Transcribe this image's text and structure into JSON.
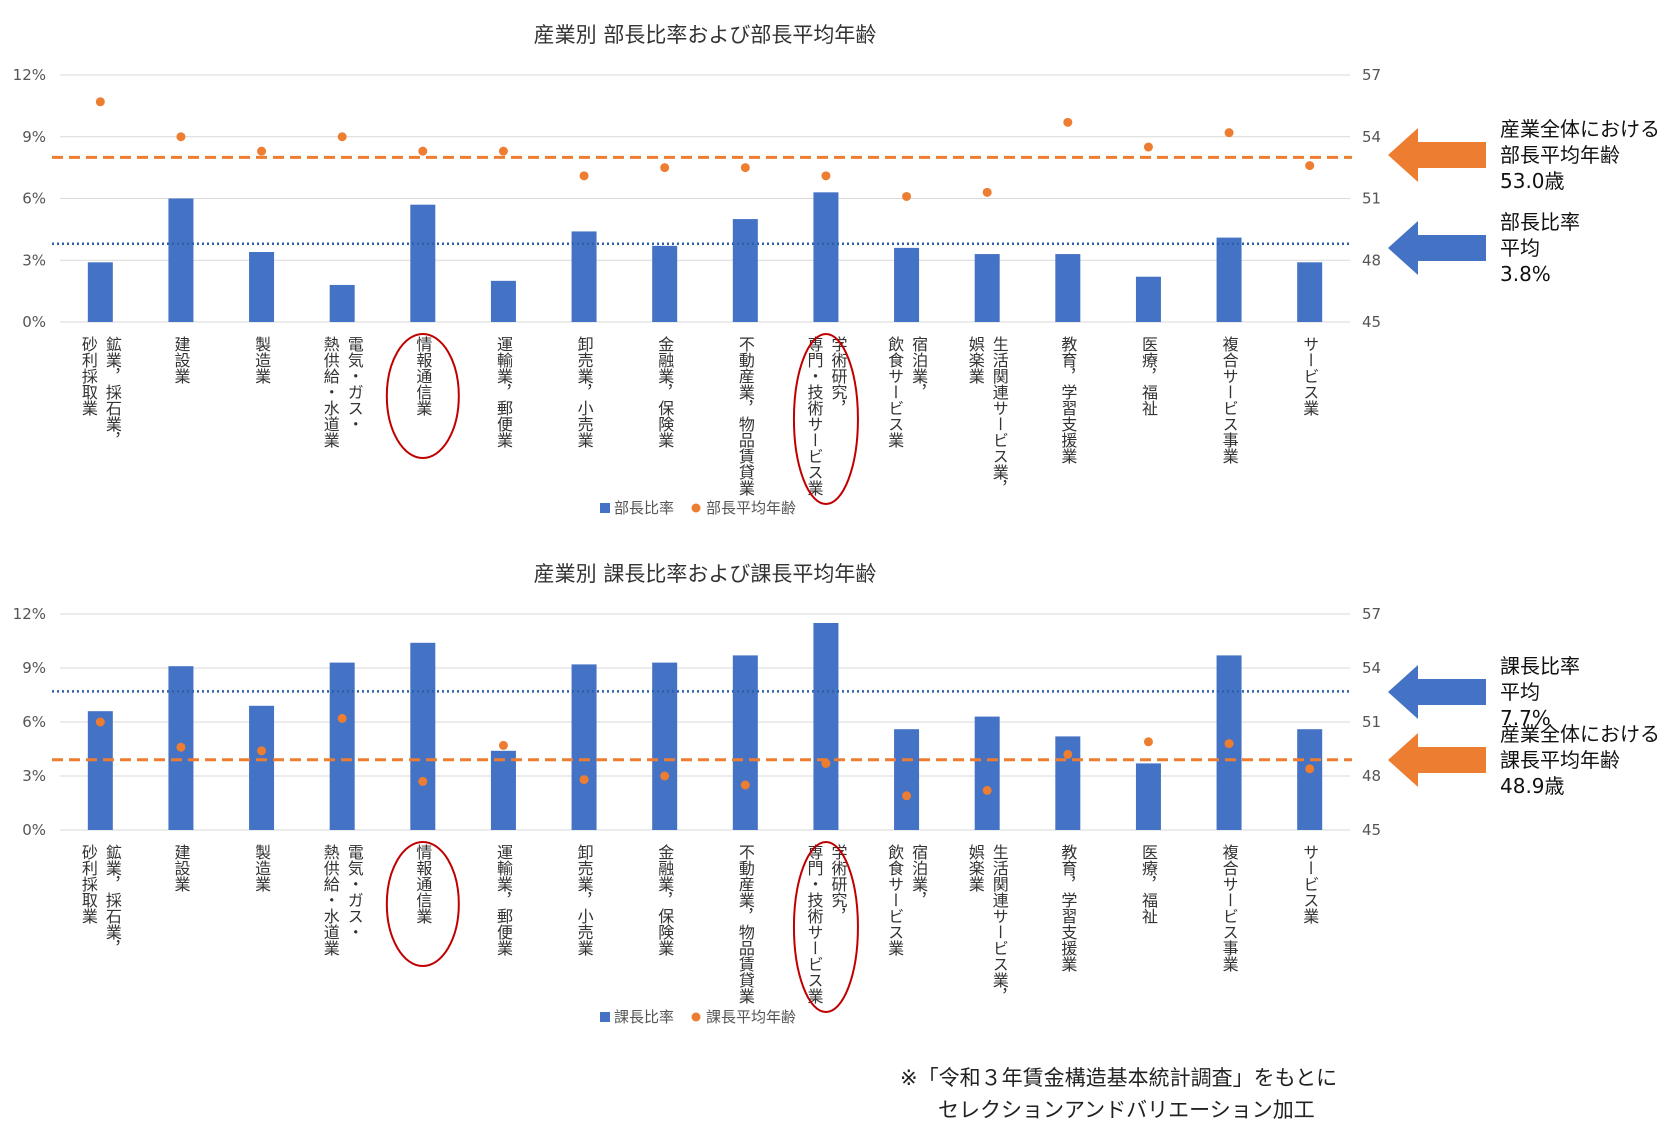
{
  "charts": [
    {
      "id": "bucho",
      "chart_data": {
        "type": "bar",
        "title": "産業別 部長比率および部長平均年齢",
        "categories": [
          [
            "鉱業，採石業，",
            "砂利採取業"
          ],
          [
            "建設業"
          ],
          [
            "製造業"
          ],
          [
            "電気・ガス・",
            "熱供給・水道業"
          ],
          [
            "情報通信業"
          ],
          [
            "運輸業，郵便業"
          ],
          [
            "卸売業，小売業"
          ],
          [
            "金融業，保険業"
          ],
          [
            "不動産業，物品賃貸業"
          ],
          [
            "学術研究，",
            "専門・技術サービス業"
          ],
          [
            "宿泊業，",
            "飲食サービス業"
          ],
          [
            "生活関連サービス業，",
            "娯楽業"
          ],
          [
            "教育，学習支援業"
          ],
          [
            "医療，福祉"
          ],
          [
            "複合サービス事業"
          ],
          [
            "サービス業"
          ]
        ],
        "series": [
          {
            "name": "部長比率",
            "axis": "left",
            "kind": "bar",
            "color": "#4472c4",
            "values": [
              2.9,
              6.0,
              3.4,
              1.8,
              5.7,
              2.0,
              4.4,
              3.7,
              5.0,
              6.3,
              3.6,
              3.3,
              3.3,
              2.2,
              4.1,
              2.9
            ]
          },
          {
            "name": "部長平均年齢",
            "axis": "right",
            "kind": "scatter",
            "color": "#ed7d31",
            "values": [
              55.7,
              54.0,
              53.3,
              54.0,
              53.3,
              53.3,
              52.1,
              52.5,
              52.5,
              52.1,
              51.1,
              51.3,
              54.7,
              53.5,
              54.2,
              52.6
            ]
          }
        ],
        "yleft": {
          "min": 0,
          "max": 12,
          "ticks": [
            "0%",
            "3%",
            "6%",
            "9%",
            "12%"
          ]
        },
        "yright": {
          "min": 45,
          "max": 57,
          "ticks": [
            "45",
            "48",
            "51",
            "54",
            "57"
          ]
        },
        "ref_lines": [
          {
            "axis": "left",
            "value": 3.8,
            "style": "dotted",
            "color": "#2e5fa8"
          },
          {
            "axis": "right",
            "value": 53.0,
            "style": "dashed",
            "color": "#ed7d31"
          }
        ],
        "highlighted_categories": [
          4,
          9
        ],
        "legend": "bottom-center",
        "grid": true
      },
      "callouts": [
        {
          "color": "#ed7d31",
          "lines": [
            "産業全体における",
            "部長平均年齢",
            "53.0歳"
          ]
        },
        {
          "color": "#4472c4",
          "lines": [
            "部長比率",
            "平均",
            "3.8%"
          ]
        }
      ]
    },
    {
      "id": "kacho",
      "chart_data": {
        "type": "bar",
        "title": "産業別 課長比率および課長平均年齢",
        "categories": [
          [
            "鉱業，採石業，",
            "砂利採取業"
          ],
          [
            "建設業"
          ],
          [
            "製造業"
          ],
          [
            "電気・ガス・",
            "熱供給・水道業"
          ],
          [
            "情報通信業"
          ],
          [
            "運輸業，郵便業"
          ],
          [
            "卸売業，小売業"
          ],
          [
            "金融業，保険業"
          ],
          [
            "不動産業，物品賃貸業"
          ],
          [
            "学術研究，",
            "専門・技術サービス業"
          ],
          [
            "宿泊業，",
            "飲食サービス業"
          ],
          [
            "生活関連サービス業，",
            "娯楽業"
          ],
          [
            "教育，学習支援業"
          ],
          [
            "医療，福祉"
          ],
          [
            "複合サービス事業"
          ],
          [
            "サービス業"
          ]
        ],
        "series": [
          {
            "name": "課長比率",
            "axis": "left",
            "kind": "bar",
            "color": "#4472c4",
            "values": [
              6.6,
              9.1,
              6.9,
              9.3,
              10.4,
              4.4,
              9.2,
              9.3,
              9.7,
              11.5,
              5.6,
              6.3,
              5.2,
              3.7,
              9.7,
              5.6
            ]
          },
          {
            "name": "課長平均年齢",
            "axis": "right",
            "kind": "scatter",
            "color": "#ed7d31",
            "values": [
              51.0,
              49.6,
              49.4,
              51.2,
              47.7,
              49.7,
              47.8,
              48.0,
              47.5,
              48.7,
              46.9,
              47.2,
              49.2,
              49.9,
              49.8,
              48.4
            ]
          }
        ],
        "yleft": {
          "min": 0,
          "max": 12,
          "ticks": [
            "0%",
            "3%",
            "6%",
            "9%",
            "12%"
          ]
        },
        "yright": {
          "min": 45,
          "max": 57,
          "ticks": [
            "45",
            "48",
            "51",
            "54",
            "57"
          ]
        },
        "ref_lines": [
          {
            "axis": "left",
            "value": 7.7,
            "style": "dotted",
            "color": "#2e5fa8"
          },
          {
            "axis": "right",
            "value": 48.9,
            "style": "dashed",
            "color": "#ed7d31"
          }
        ],
        "highlighted_categories": [
          4,
          9
        ],
        "legend": "bottom-center",
        "grid": true
      },
      "callouts": [
        {
          "color": "#4472c4",
          "lines": [
            "課長比率",
            "平均",
            "7.7%"
          ]
        },
        {
          "color": "#ed7d31",
          "lines": [
            "産業全体における",
            "課長平均年齢",
            "48.9歳"
          ]
        }
      ]
    }
  ],
  "footnote": {
    "line1": "※「令和３年賃金構造基本統計調査」をもとに",
    "line2": "セレクションアンドバリエーション加工"
  }
}
